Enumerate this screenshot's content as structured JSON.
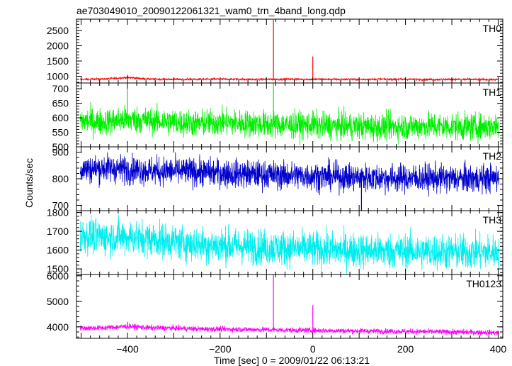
{
  "chart_data": {
    "type": "line",
    "title": "ae703049010_20090122061321_wam0_trn_4band_long.qdp",
    "xlabel": "Time [sec] 0 = 2009/01/22 06:13:21",
    "ylabel": "Counts/sec",
    "xlim": [
      -510,
      410
    ],
    "x_ticks": [
      -400,
      -200,
      0,
      200,
      400
    ],
    "x_tick_labels": [
      "−400",
      "−200",
      "0",
      "200",
      "400"
    ],
    "panels": [
      {
        "name": "TH0",
        "color": "#ff0000",
        "ylim": [
          780,
          2870
        ],
        "y_ticks": [
          1000,
          1500,
          2000,
          2500
        ],
        "y_tick_labels": [
          "1000",
          "1500",
          "2000",
          "2500"
        ],
        "x": [
          -500,
          -450,
          -400,
          -350,
          -300,
          -250,
          -200,
          -150,
          -100,
          -50,
          0,
          50,
          100,
          150,
          200,
          250,
          300,
          350,
          400
        ],
        "y": [
          900,
          910,
          960,
          905,
          900,
          900,
          905,
          900,
          900,
          905,
          900,
          900,
          900,
          905,
          900,
          895,
          900,
          895,
          890
        ],
        "noise": 30,
        "spikes": [
          {
            "x": -85,
            "y": 2850
          },
          {
            "x": 0,
            "y": 1650
          },
          {
            "x": -400,
            "y": 1050
          }
        ]
      },
      {
        "name": "TH1",
        "color": "#00ee00",
        "ylim": [
          500,
          720
        ],
        "y_ticks": [
          500,
          550,
          600,
          650,
          700
        ],
        "y_tick_labels": [
          "500",
          "550",
          "600",
          "650",
          "700"
        ],
        "x": [
          -500,
          -450,
          -400,
          -350,
          -300,
          -250,
          -200,
          -150,
          -100,
          -50,
          0,
          50,
          100,
          150,
          200,
          250,
          300,
          350,
          400
        ],
        "y": [
          590,
          585,
          595,
          590,
          585,
          580,
          585,
          580,
          578,
          575,
          575,
          572,
          570,
          568,
          570,
          572,
          570,
          568,
          572
        ],
        "noise": 42,
        "spikes": [
          {
            "x": -85,
            "y": 720
          },
          {
            "x": -400,
            "y": 700
          }
        ]
      },
      {
        "name": "TH2",
        "color": "#0000cc",
        "ylim": [
          680,
          920
        ],
        "y_ticks": [
          700,
          800,
          900
        ],
        "y_tick_labels": [
          "700",
          "800",
          "900"
        ],
        "x": [
          -500,
          -450,
          -400,
          -350,
          -300,
          -250,
          -200,
          -150,
          -100,
          -50,
          0,
          50,
          100,
          150,
          200,
          250,
          300,
          350,
          400
        ],
        "y": [
          835,
          840,
          835,
          830,
          828,
          825,
          822,
          818,
          815,
          812,
          810,
          808,
          805,
          803,
          802,
          802,
          800,
          800,
          802
        ],
        "noise": 48,
        "spikes": [
          {
            "x": 105,
            "y": 680
          }
        ]
      },
      {
        "name": "TH3",
        "color": "#00eeee",
        "ylim": [
          1470,
          1810
        ],
        "y_ticks": [
          1500,
          1600,
          1700,
          1800
        ],
        "y_tick_labels": [
          "1500",
          "1600",
          "1700",
          "1800"
        ],
        "x": [
          -500,
          -450,
          -400,
          -350,
          -300,
          -250,
          -200,
          -150,
          -100,
          -50,
          0,
          50,
          100,
          150,
          200,
          250,
          300,
          350,
          400
        ],
        "y": [
          1680,
          1670,
          1670,
          1660,
          1645,
          1630,
          1625,
          1620,
          1615,
          1610,
          1605,
          1600,
          1598,
          1595,
          1595,
          1593,
          1590,
          1590,
          1588
        ],
        "noise": 85
      },
      {
        "name": "TH0123",
        "color": "#ff00ff",
        "ylim": [
          3550,
          6050
        ],
        "y_ticks": [
          4000,
          5000,
          6000
        ],
        "y_tick_labels": [
          "4000",
          "5000",
          "6000"
        ],
        "x": [
          -500,
          -450,
          -400,
          -350,
          -300,
          -250,
          -200,
          -150,
          -100,
          -50,
          0,
          50,
          100,
          150,
          200,
          250,
          300,
          350,
          400
        ],
        "y": [
          3950,
          3960,
          4020,
          3960,
          3950,
          3920,
          3910,
          3900,
          3890,
          3870,
          3860,
          3850,
          3840,
          3830,
          3820,
          3810,
          3800,
          3790,
          3770
        ],
        "noise": 95,
        "spikes": [
          {
            "x": -85,
            "y": 6050
          },
          {
            "x": 0,
            "y": 4850
          },
          {
            "x": -400,
            "y": 4200
          }
        ]
      }
    ]
  }
}
